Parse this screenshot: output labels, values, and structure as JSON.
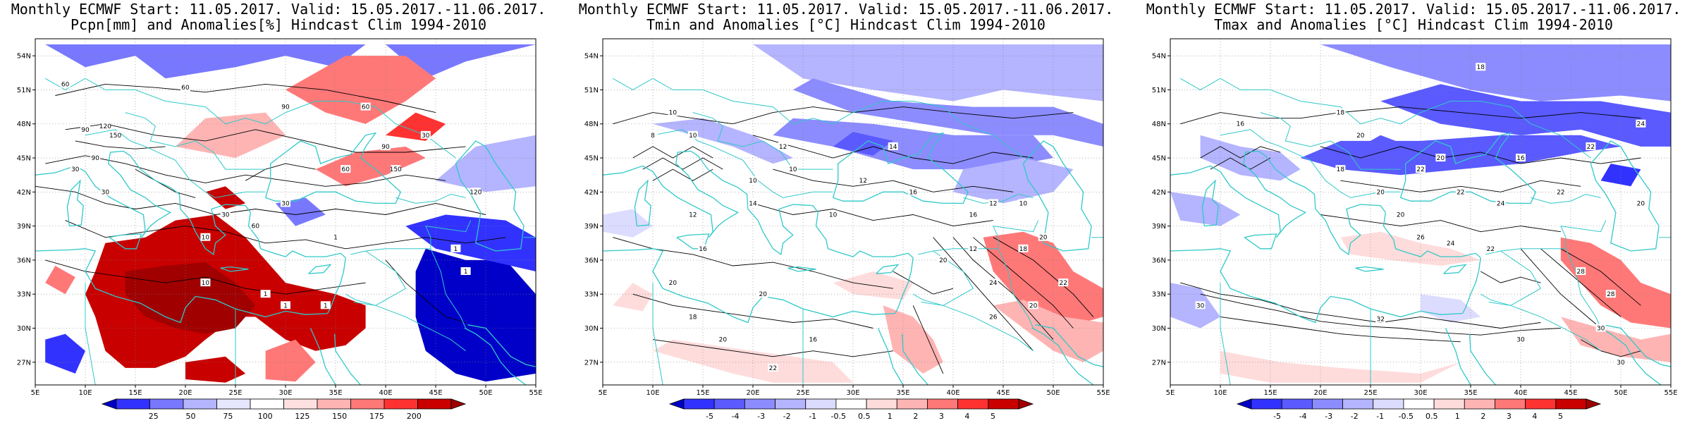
{
  "panels": [
    {
      "title_line1": "Monthly ECMWF Start: 11.05.2017. Valid: 15.05.2017.-11.06.2017.",
      "title_line2": "Pcpn[mm] and Anomalies[%] Hindcast Clim 1994-2010",
      "variable": "precipitation",
      "colorbar": {
        "labels": [
          "25",
          "50",
          "75",
          "100",
          "125",
          "150",
          "175",
          "200"
        ],
        "colors": [
          "#0000c8",
          "#3232ff",
          "#7878ff",
          "#b4b4ff",
          "#e6e6ff",
          "#ffffff",
          "#ffe0e0",
          "#ffb4b4",
          "#ff7878",
          "#ff3232",
          "#c80000",
          "#a00000"
        ]
      },
      "contour_labels": [
        "60",
        "60",
        "90",
        "120",
        "150",
        "90",
        "60",
        "30",
        "30",
        "90",
        "30",
        "60",
        "90",
        "150",
        "120",
        "10",
        "1",
        "1",
        "1",
        "1",
        "10",
        "1",
        "1",
        "30",
        "60",
        "30"
      ]
    },
    {
      "title_line1": "Monthly ECMWF Start: 11.05.2017. Valid: 15.05.2017.-11.06.2017.",
      "title_line2": "Tmin and Anomalies [°C] Hindcast Clim 1994-2010",
      "variable": "tmin",
      "colorbar": {
        "labels": [
          "-5",
          "-4",
          "-3",
          "-2",
          "-1",
          "-0.5",
          "0.5",
          "1",
          "2",
          "3",
          "4",
          "5"
        ],
        "colors": [
          "#0000c8",
          "#3232ff",
          "#5a5aff",
          "#8c8cff",
          "#b4b4ff",
          "#dcdcff",
          "#ffffff",
          "#ffdcdc",
          "#ffb4b4",
          "#ff7878",
          "#ff3232",
          "#c80000",
          "#a00000"
        ]
      },
      "contour_labels": [
        "10",
        "8",
        "10",
        "12",
        "10",
        "14",
        "12",
        "10",
        "16",
        "10",
        "14",
        "12",
        "16",
        "12",
        "20",
        "20",
        "18",
        "16",
        "20",
        "22",
        "24",
        "26",
        "20",
        "18",
        "20",
        "22",
        "12",
        "10",
        "16",
        "20"
      ]
    },
    {
      "title_line1": "Monthly ECMWF Start: 11.05.2017. Valid: 15.05.2017.-11.06.2017.",
      "title_line2": "Tmax and Anomalies [°C] Hindcast Clim 1994-2010",
      "variable": "tmax",
      "colorbar": {
        "labels": [
          "-5",
          "-4",
          "-3",
          "-2",
          "-1",
          "-0.5",
          "0.5",
          "1",
          "2",
          "3",
          "4",
          "5"
        ],
        "colors": [
          "#0000c8",
          "#3232ff",
          "#5a5aff",
          "#8c8cff",
          "#b4b4ff",
          "#dcdcff",
          "#ffffff",
          "#ffdcdc",
          "#ffb4b4",
          "#ff7878",
          "#ff3232",
          "#c80000",
          "#a00000"
        ]
      },
      "contour_labels": [
        "18",
        "16",
        "18",
        "20",
        "24",
        "22",
        "20",
        "16",
        "18",
        "22",
        "20",
        "22",
        "24",
        "22",
        "20",
        "26",
        "24",
        "22",
        "28",
        "30",
        "30",
        "32",
        "30",
        "30",
        "28",
        "20"
      ]
    }
  ],
  "axes": {
    "lat_labels": [
      "54N",
      "51N",
      "48N",
      "45N",
      "42N",
      "39N",
      "36N",
      "33N",
      "30N",
      "27N"
    ],
    "lon_labels": [
      "5E",
      "10E",
      "15E",
      "20E",
      "25E",
      "30E",
      "35E",
      "40E",
      "45E",
      "50E",
      "55E"
    ]
  },
  "colors": {
    "coastline": "#30c8c8",
    "contour": "#000000",
    "grid": "#808080"
  }
}
